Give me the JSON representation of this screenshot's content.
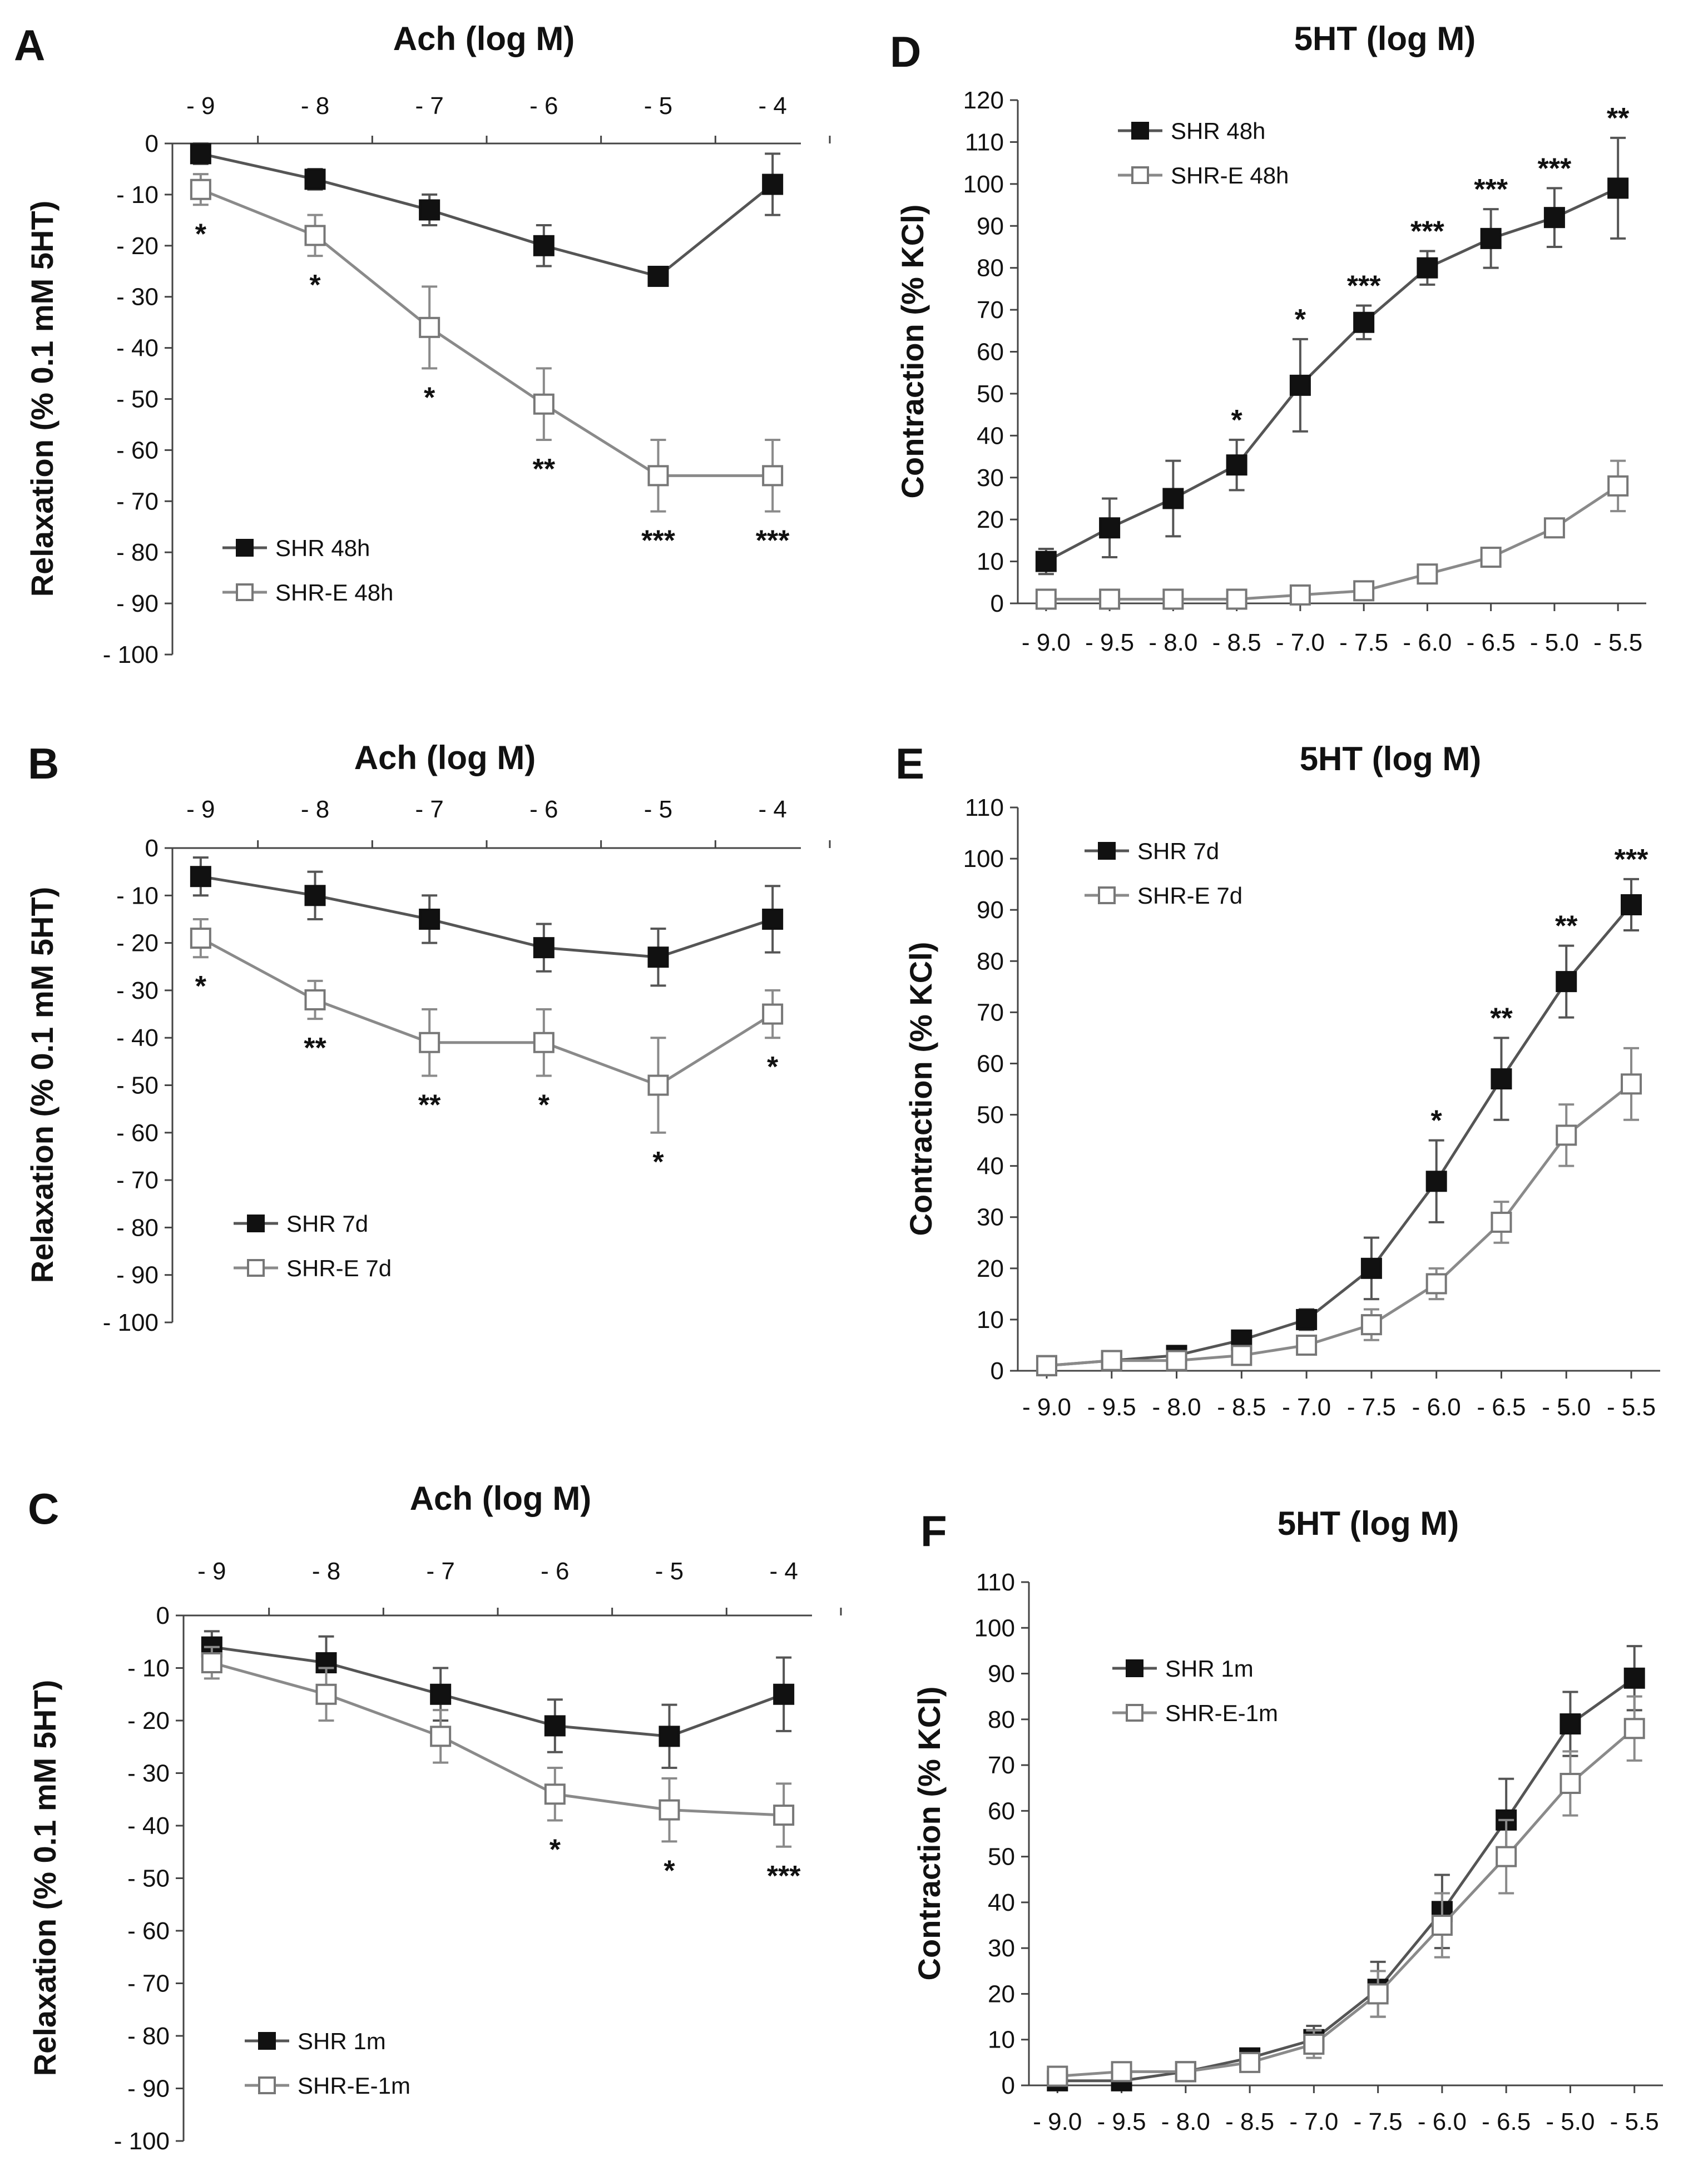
{
  "colors": {
    "axis": "#444444",
    "grid": "#bbbbbb",
    "line_filled": "#555555",
    "line_open": "#8a8a8a",
    "marker_filled": "#111111",
    "marker_open_fill": "#ffffff",
    "marker_open_stroke": "#777777",
    "text": "#111111"
  },
  "chart_data": [
    {
      "id": "A",
      "letter": "A",
      "type": "line",
      "title": "Ach (log M)",
      "ylabel": "Relaxation (% 0.1 mM 5HT)",
      "ylim": [
        -100,
        0
      ],
      "yticks": [
        "0",
        "- 10",
        "- 20",
        "- 30",
        "- 40",
        "- 50",
        "- 60",
        "- 70",
        "- 80",
        "- 90",
        "- 100"
      ],
      "x_position": "top",
      "categories": [
        "- 9",
        "- 8",
        "- 7",
        "- 6",
        "- 5",
        "- 4"
      ],
      "series": [
        {
          "name": "SHR 48h",
          "marker": "filled",
          "values": [
            -2,
            -7,
            -13,
            -20,
            -26,
            -8
          ],
          "errors": [
            2,
            2,
            3,
            4,
            1,
            6
          ]
        },
        {
          "name": "SHR-E 48h",
          "marker": "open",
          "values": [
            -9,
            -18,
            -36,
            -51,
            -65,
            -65
          ],
          "errors": [
            3,
            4,
            8,
            7,
            7,
            7
          ]
        }
      ],
      "significance": [
        "*",
        "*",
        "*",
        "**",
        "***",
        "***"
      ],
      "legend": "bottom-left"
    },
    {
      "id": "B",
      "letter": "B",
      "type": "line",
      "title": "Ach (log M)",
      "ylabel": "Relaxation (% 0.1 mM 5HT)",
      "ylim": [
        -100,
        0
      ],
      "yticks": [
        "0",
        "- 10",
        "- 20",
        "- 30",
        "- 40",
        "- 50",
        "- 60",
        "- 70",
        "- 80",
        "- 90",
        "- 100"
      ],
      "x_position": "top",
      "categories": [
        "- 9",
        "- 8",
        "- 7",
        "- 6",
        "- 5",
        "- 4"
      ],
      "series": [
        {
          "name": "SHR 7d",
          "marker": "filled",
          "values": [
            -6,
            -10,
            -15,
            -21,
            -23,
            -15
          ],
          "errors": [
            4,
            5,
            5,
            5,
            6,
            7
          ]
        },
        {
          "name": "SHR-E 7d",
          "marker": "open",
          "values": [
            -19,
            -32,
            -41,
            -41,
            -50,
            -35
          ],
          "errors": [
            4,
            4,
            7,
            7,
            10,
            5
          ]
        }
      ],
      "significance": [
        "*",
        "**",
        "**",
        "*",
        "*",
        "*"
      ],
      "legend": "bottom-left"
    },
    {
      "id": "C",
      "letter": "C",
      "type": "line",
      "title": "Ach (log M)",
      "ylabel": "Relaxation (% 0.1 mM 5HT)",
      "ylim": [
        -100,
        0
      ],
      "yticks": [
        "0",
        "- 10",
        "- 20",
        "- 30",
        "- 40",
        "- 50",
        "- 60",
        "- 70",
        "- 80",
        "- 90",
        "- 100"
      ],
      "x_position": "top",
      "categories": [
        "- 9",
        "- 8",
        "- 7",
        "- 6",
        "- 5",
        "- 4"
      ],
      "series": [
        {
          "name": "SHR 1m",
          "marker": "filled",
          "values": [
            -6,
            -9,
            -15,
            -21,
            -23,
            -15
          ],
          "errors": [
            3,
            5,
            5,
            5,
            6,
            7
          ]
        },
        {
          "name": "SHR-E-1m",
          "marker": "open",
          "values": [
            -9,
            -15,
            -23,
            -34,
            -37,
            -38
          ],
          "errors": [
            3,
            5,
            5,
            5,
            6,
            6
          ]
        }
      ],
      "significance": [
        "",
        "",
        "",
        "*",
        "*",
        "***"
      ],
      "legend": "bottom-left"
    },
    {
      "id": "D",
      "letter": "D",
      "type": "line",
      "title": "5HT (log M)",
      "ylabel": "Contraction (% KCl)",
      "ylim": [
        0,
        120
      ],
      "yticks": [
        "0",
        "10",
        "20",
        "30",
        "40",
        "50",
        "60",
        "70",
        "80",
        "90",
        "100",
        "110",
        "120"
      ],
      "x_position": "bottom",
      "categories": [
        "- 9.0",
        "- 9.5",
        "- 8.0",
        "- 8.5",
        "- 7.0",
        "- 7.5",
        "- 6.0",
        "- 6.5",
        "- 5.0",
        "- 5.5"
      ],
      "series": [
        {
          "name": "SHR 48h",
          "marker": "filled",
          "values": [
            10,
            18,
            25,
            33,
            52,
            67,
            80,
            87,
            92,
            99
          ],
          "errors": [
            3,
            7,
            9,
            6,
            11,
            4,
            4,
            7,
            7,
            12
          ]
        },
        {
          "name": "SHR-E 48h",
          "marker": "open",
          "values": [
            1,
            1,
            1,
            1,
            2,
            3,
            7,
            11,
            18,
            28
          ],
          "errors": [
            1,
            1,
            1,
            1,
            1,
            1,
            2,
            2,
            2,
            6
          ]
        }
      ],
      "significance": [
        "",
        "",
        "",
        "*",
        "*",
        "***",
        "***",
        "***",
        "***",
        "**"
      ],
      "legend": "top-left"
    },
    {
      "id": "E",
      "letter": "E",
      "type": "line",
      "title": "5HT (log M)",
      "ylabel": "Contraction (% KCl)",
      "ylim": [
        0,
        110
      ],
      "yticks": [
        "0",
        "10",
        "20",
        "30",
        "40",
        "50",
        "60",
        "70",
        "80",
        "90",
        "100",
        "110"
      ],
      "x_position": "bottom",
      "categories": [
        "- 9.0",
        "- 9.5",
        "- 8.0",
        "- 8.5",
        "- 7.0",
        "- 7.5",
        "- 6.0",
        "- 6.5",
        "- 5.0",
        "- 5.5"
      ],
      "series": [
        {
          "name": "SHR 7d",
          "marker": "filled",
          "values": [
            1,
            2,
            3,
            6,
            10,
            20,
            37,
            57,
            76,
            91
          ],
          "errors": [
            1,
            1,
            1,
            1,
            2,
            6,
            8,
            8,
            7,
            5
          ]
        },
        {
          "name": "SHR-E 7d",
          "marker": "open",
          "values": [
            1,
            2,
            2,
            3,
            5,
            9,
            17,
            29,
            46,
            56
          ],
          "errors": [
            1,
            1,
            1,
            1,
            1,
            3,
            3,
            4,
            6,
            7
          ]
        }
      ],
      "significance": [
        "",
        "",
        "",
        "",
        "",
        "",
        "*",
        "**",
        "**",
        "***"
      ],
      "legend": "top-left"
    },
    {
      "id": "F",
      "letter": "F",
      "type": "line",
      "title": "5HT (log M)",
      "ylabel": "Contraction (% KCl)",
      "ylim": [
        0,
        110
      ],
      "yticks": [
        "0",
        "10",
        "20",
        "30",
        "40",
        "50",
        "60",
        "70",
        "80",
        "90",
        "100",
        "110"
      ],
      "x_position": "bottom",
      "categories": [
        "- 9.0",
        "- 9.5",
        "- 8.0",
        "- 8.5",
        "- 7.0",
        "- 7.5",
        "- 6.0",
        "- 6.5",
        "- 5.0",
        "- 5.5"
      ],
      "series": [
        {
          "name": "SHR 1m",
          "marker": "filled",
          "values": [
            1,
            1,
            3,
            6,
            10,
            21,
            38,
            58,
            79,
            89
          ],
          "errors": [
            1,
            1,
            1,
            1,
            3,
            6,
            8,
            9,
            7,
            7
          ]
        },
        {
          "name": "SHR-E-1m",
          "marker": "open",
          "values": [
            2,
            3,
            3,
            5,
            9,
            20,
            35,
            50,
            66,
            78
          ],
          "errors": [
            1,
            1,
            1,
            1,
            3,
            5,
            7,
            8,
            7,
            7
          ]
        }
      ],
      "significance": [
        "",
        "",
        "",
        "",
        "",
        "",
        "",
        "",
        "",
        ""
      ],
      "legend": "top-left"
    }
  ]
}
